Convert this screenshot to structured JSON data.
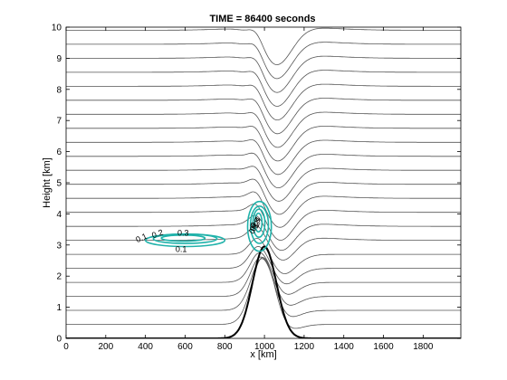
{
  "chart_data": {
    "type": "contour",
    "title": "TIME = 86400 seconds",
    "xlabel": "x [km]",
    "ylabel": "Height [km]",
    "xlim": [
      0,
      1990
    ],
    "ylim": [
      0,
      10
    ],
    "xticks": [
      0,
      200,
      400,
      600,
      800,
      1000,
      1200,
      1400,
      1600,
      1800
    ],
    "yticks": [
      0,
      1,
      2,
      3,
      4,
      5,
      6,
      7,
      8,
      9,
      10
    ],
    "grid": false,
    "colors": {
      "isentropes": "#555555",
      "terrain": "#000000",
      "tracer": "#20b2aa",
      "axes": "#000000"
    },
    "terrain": {
      "center_km": 1000,
      "height_km": 2.95,
      "halfwidth_km": 85
    },
    "isentrope_base_heights_km": [
      0.45,
      0.9,
      1.35,
      1.8,
      2.25,
      2.7,
      3.15,
      3.6,
      4.05,
      4.5,
      4.95,
      5.4,
      5.85,
      6.3,
      6.75,
      7.2,
      7.65,
      8.1,
      8.55,
      9.0,
      9.45,
      9.9
    ],
    "tracer_contours": [
      {
        "level": 0.1,
        "label": "0.1",
        "blob": "left",
        "center_x_km": 600,
        "center_z_km": 3.15,
        "radius_x_km": 200,
        "radius_z_km": 0.2
      },
      {
        "level": 0.2,
        "label": "0.2",
        "blob": "left",
        "center_x_km": 600,
        "center_z_km": 3.2,
        "radius_x_km": 160,
        "radius_z_km": 0.15
      },
      {
        "level": 0.3,
        "label": "0.3",
        "blob": "left",
        "center_x_km": 590,
        "center_z_km": 3.22,
        "radius_x_km": 110,
        "radius_z_km": 0.1
      },
      {
        "level": 0.1,
        "label": "0.1",
        "blob": "mountain",
        "center_x_km": 975,
        "center_z_km": 3.6,
        "radius_x_km": 60,
        "radius_z_km": 0.8
      },
      {
        "level": 0.2,
        "label": "0.2",
        "blob": "mountain",
        "center_x_km": 975,
        "center_z_km": 3.65,
        "radius_x_km": 45,
        "radius_z_km": 0.6
      },
      {
        "level": 0.3,
        "label": "0.3",
        "blob": "mountain",
        "center_x_km": 972,
        "center_z_km": 3.7,
        "radius_x_km": 30,
        "radius_z_km": 0.45
      },
      {
        "level": 0.4,
        "label": "0.4",
        "blob": "mountain",
        "center_x_km": 970,
        "center_z_km": 3.72,
        "radius_x_km": 18,
        "radius_z_km": 0.3
      }
    ]
  }
}
